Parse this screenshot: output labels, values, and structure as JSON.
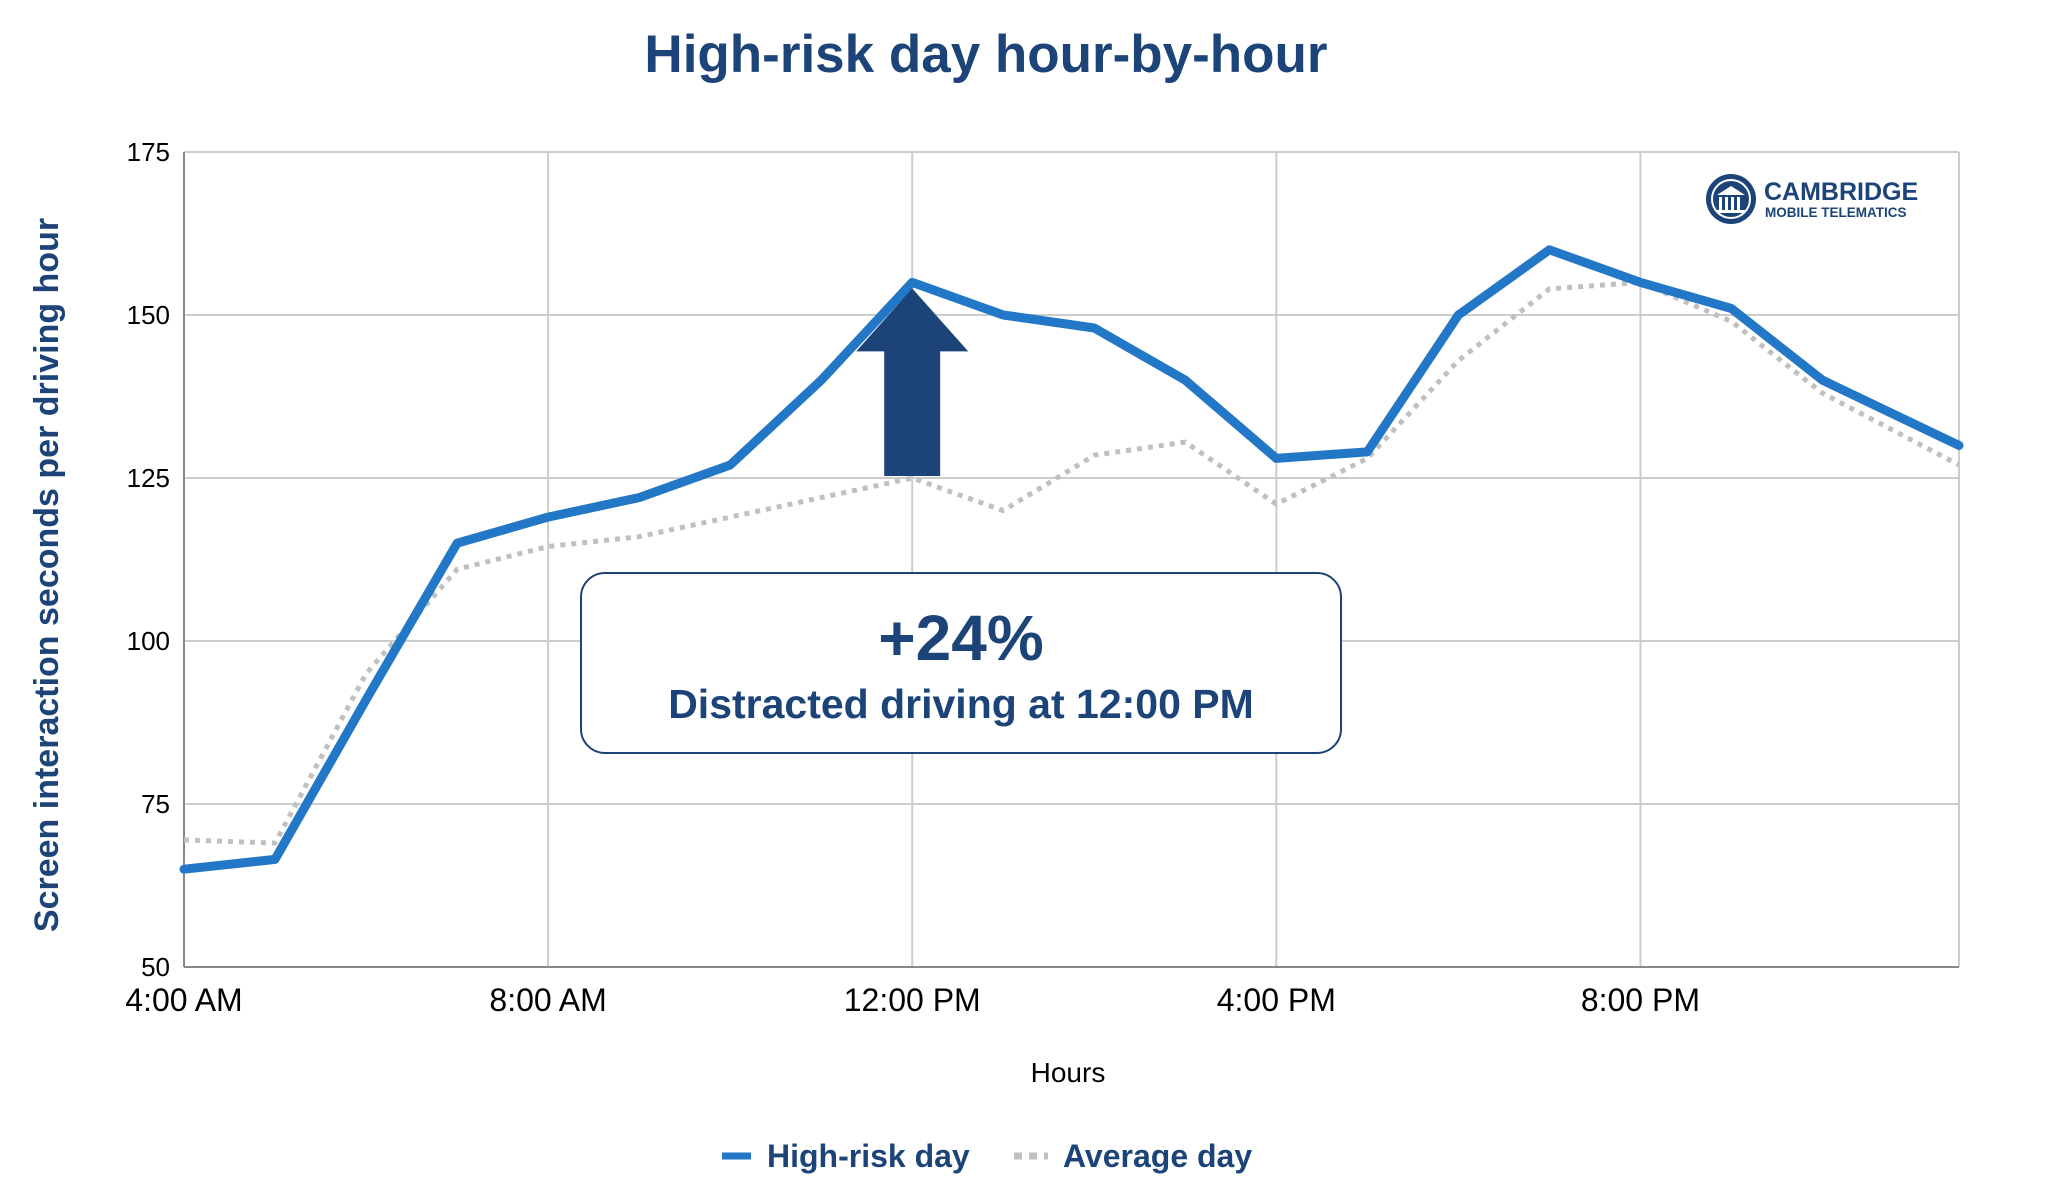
{
  "chart_data": {
    "type": "line",
    "title": "High-risk day hour-by-hour",
    "xlabel": "Hours",
    "ylabel": "Screen interaction seconds per driving hour",
    "ylim": [
      50,
      175
    ],
    "yticks": [
      50,
      75,
      100,
      125,
      150,
      175
    ],
    "xlim": [
      4,
      23.5
    ],
    "xticks": [
      {
        "hour": 4,
        "label": "4:00 AM"
      },
      {
        "hour": 8,
        "label": "8:00 AM"
      },
      {
        "hour": 12,
        "label": "12:00 PM"
      },
      {
        "hour": 16,
        "label": "4:00 PM"
      },
      {
        "hour": 20,
        "label": "8:00 PM"
      }
    ],
    "grid": true,
    "legend_position": "bottom",
    "series": [
      {
        "name": "High-risk day",
        "color": "#2277c7",
        "style": "solid",
        "x": [
          4,
          5,
          6,
          7,
          8,
          9,
          10,
          11,
          12,
          13,
          14,
          15,
          16,
          17,
          18,
          19,
          20,
          21,
          22,
          23.5
        ],
        "values": [
          65,
          66.5,
          91,
          115,
          119,
          122,
          127,
          140,
          155,
          150,
          148,
          140,
          128,
          129,
          150,
          160,
          155,
          151,
          140,
          130
        ]
      },
      {
        "name": "Average day",
        "color": "#c0c0c0",
        "style": "dotted",
        "x": [
          4,
          5,
          6,
          7,
          8,
          9,
          10,
          11,
          12,
          13,
          14,
          15,
          16,
          17,
          18,
          19,
          20,
          21,
          22,
          23.5
        ],
        "values": [
          69.5,
          69,
          95,
          111,
          114.5,
          116,
          119,
          122,
          125,
          120,
          128.5,
          130.5,
          121,
          128,
          143,
          154,
          155,
          149,
          138,
          127
        ]
      }
    ],
    "annotation": {
      "value": "+24%",
      "text": "Distracted driving at 12:00 PM",
      "arrow_hour": 12,
      "arrow_from": 125,
      "arrow_to": 155
    }
  },
  "logo": {
    "line1": "CAMBRIDGE",
    "line2": "MOBILE TELEMATICS",
    "icon": "cambridge-building-icon"
  },
  "colors": {
    "brand": "#1c4478",
    "high_risk": "#2277c7",
    "average": "#c0c0c0",
    "grid": "#cccccc"
  }
}
